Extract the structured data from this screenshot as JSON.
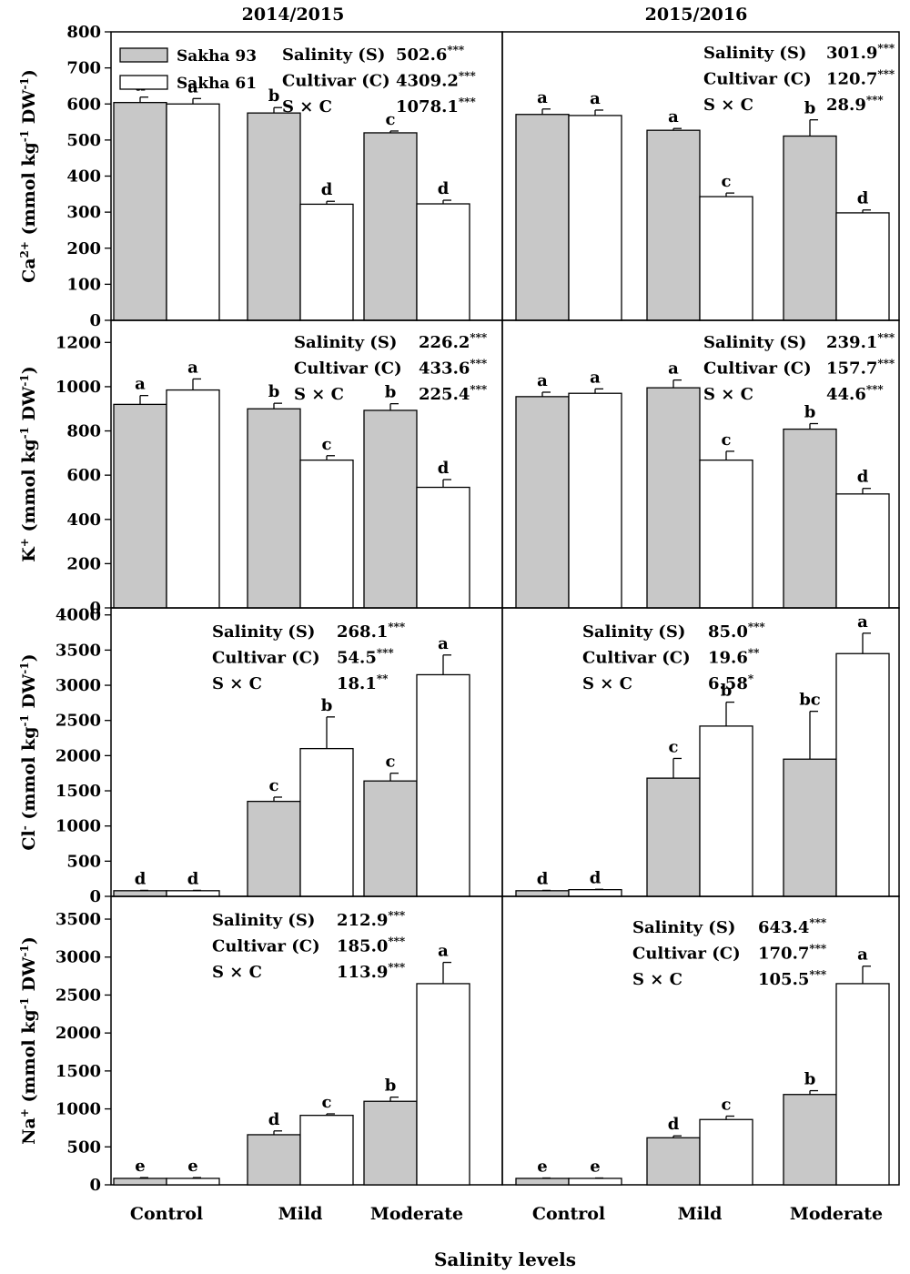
{
  "figure": {
    "columns": [
      "2014/2015",
      "2015/2016"
    ],
    "xlabel": "Salinity levels"
  },
  "legend": {
    "entries": [
      {
        "label": "Sakha 93",
        "fill": "#c8c8c8"
      },
      {
        "label": "Sakha 61",
        "fill": "#ffffff"
      }
    ]
  },
  "rows": [
    {
      "ylabel": {
        "main": "Ca",
        "sup1": "2+",
        "mid": " (mmol kg",
        "sup2": "-1",
        "end": " DW",
        "sup3": "-1",
        "close": ")"
      },
      "ylim": [
        0,
        800
      ],
      "yticks": [
        "0",
        "100",
        "200",
        "300",
        "400",
        "500",
        "600",
        "700",
        "800"
      ]
    },
    {
      "ylabel": {
        "main": "K",
        "sup1": "+",
        "mid": " (mmol kg",
        "sup2": "-1",
        "end": " DW",
        "sup3": "-1",
        "close": ")"
      },
      "ylim": [
        0,
        1300
      ],
      "yticks": [
        "0",
        "200",
        "400",
        "600",
        "800",
        "1000",
        "1200"
      ]
    },
    {
      "ylabel": {
        "main": "Cl",
        "sup1": "-",
        "mid": " (mmol kg",
        "sup2": "-1",
        "end": " DW",
        "sup3": "-1",
        "close": ")"
      },
      "ylim": [
        0,
        4100
      ],
      "yticks": [
        "0",
        "500",
        "1000",
        "1500",
        "2000",
        "2500",
        "3000",
        "3500",
        "4000"
      ]
    },
    {
      "ylabel": {
        "main": "Na",
        "sup1": "+",
        "mid": " (mmol kg",
        "sup2": "-1",
        "end": " DW",
        "sup3": "-1",
        "close": ")"
      },
      "ylim": [
        0,
        3800
      ],
      "yticks": [
        "0",
        "500",
        "1000",
        "1500",
        "2000",
        "2500",
        "3000",
        "3500"
      ]
    }
  ],
  "chart_data": [
    {
      "type": "bar",
      "title": "2014/2015",
      "ylabel": "Ca2+ (mmol kg-1 DW-1)",
      "xlabel": "Salinity levels",
      "ylim": [
        0,
        800
      ],
      "categories": [
        "Control",
        "Mild",
        "Moderate"
      ],
      "series": [
        {
          "name": "Sakha 93",
          "values": [
            604,
            575,
            520
          ],
          "errors": [
            15,
            15,
            5
          ],
          "letters": [
            "a",
            "b",
            "c"
          ]
        },
        {
          "name": "Sakha 61",
          "values": [
            600,
            322,
            323
          ],
          "errors": [
            15,
            8,
            10
          ],
          "letters": [
            "a",
            "d",
            "d"
          ]
        }
      ],
      "anova": [
        {
          "label": "Salinity (S)",
          "value": "502.6",
          "sig": "***"
        },
        {
          "label": "Cultivar (C)",
          "value": "4309.2",
          "sig": "***"
        },
        {
          "label": "S × C",
          "value": "1078.1",
          "sig": "***"
        }
      ]
    },
    {
      "type": "bar",
      "title": "2015/2016",
      "ylabel": "Ca2+ (mmol kg-1 DW-1)",
      "xlabel": "Salinity levels",
      "ylim": [
        0,
        800
      ],
      "categories": [
        "Control",
        "Mild",
        "Moderate"
      ],
      "series": [
        {
          "name": "Sakha 93",
          "values": [
            571,
            527,
            511
          ],
          "errors": [
            15,
            5,
            45
          ],
          "letters": [
            "a",
            "a",
            "b"
          ]
        },
        {
          "name": "Sakha 61",
          "values": [
            568,
            343,
            298
          ],
          "errors": [
            15,
            10,
            8
          ],
          "letters": [
            "a",
            "c",
            "d"
          ]
        }
      ],
      "anova": [
        {
          "label": "Salinity (S)",
          "value": "301.9",
          "sig": "***"
        },
        {
          "label": "Cultivar (C)",
          "value": "120.7",
          "sig": "***"
        },
        {
          "label": "S × C",
          "value": "28.9",
          "sig": "***"
        }
      ]
    },
    {
      "type": "bar",
      "title": "2014/2015",
      "ylabel": "K+ (mmol kg-1 DW-1)",
      "xlabel": "Salinity levels",
      "ylim": [
        0,
        1300
      ],
      "categories": [
        "Control",
        "Mild",
        "Moderate"
      ],
      "series": [
        {
          "name": "Sakha 93",
          "values": [
            920,
            900,
            893
          ],
          "errors": [
            40,
            25,
            30
          ],
          "letters": [
            "a",
            "b",
            "b"
          ]
        },
        {
          "name": "Sakha 61",
          "values": [
            985,
            668,
            545
          ],
          "errors": [
            50,
            20,
            35
          ],
          "letters": [
            "a",
            "c",
            "d"
          ]
        }
      ],
      "anova": [
        {
          "label": "Salinity (S)",
          "value": "226.2",
          "sig": "***"
        },
        {
          "label": "Cultivar (C)",
          "value": "433.6",
          "sig": "***"
        },
        {
          "label": "S × C",
          "value": "225.4",
          "sig": "***"
        }
      ]
    },
    {
      "type": "bar",
      "title": "2015/2016",
      "ylabel": "K+ (mmol kg-1 DW-1)",
      "xlabel": "Salinity levels",
      "ylim": [
        0,
        1300
      ],
      "categories": [
        "Control",
        "Mild",
        "Moderate"
      ],
      "series": [
        {
          "name": "Sakha 93",
          "values": [
            955,
            995,
            808
          ],
          "errors": [
            20,
            35,
            25
          ],
          "letters": [
            "a",
            "a",
            "b"
          ]
        },
        {
          "name": "Sakha 61",
          "values": [
            970,
            668,
            515
          ],
          "errors": [
            20,
            40,
            25
          ],
          "letters": [
            "a",
            "c",
            "d"
          ]
        }
      ],
      "anova": [
        {
          "label": "Salinity (S)",
          "value": "239.1",
          "sig": "***"
        },
        {
          "label": "Cultivar (C)",
          "value": "157.7",
          "sig": "***"
        },
        {
          "label": "S × C",
          "value": "44.6",
          "sig": "***"
        }
      ]
    },
    {
      "type": "bar",
      "title": "2014/2015",
      "ylabel": "Cl- (mmol kg-1 DW-1)",
      "xlabel": "Salinity levels",
      "ylim": [
        0,
        4100
      ],
      "categories": [
        "Control",
        "Mild",
        "Moderate"
      ],
      "series": [
        {
          "name": "Sakha 93",
          "values": [
            80,
            1350,
            1640
          ],
          "errors": [
            5,
            60,
            110
          ],
          "letters": [
            "d",
            "c",
            "c"
          ]
        },
        {
          "name": "Sakha 61",
          "values": [
            80,
            2100,
            3150
          ],
          "errors": [
            5,
            450,
            280
          ],
          "letters": [
            "d",
            "b",
            "a"
          ]
        }
      ],
      "anova": [
        {
          "label": "Salinity (S)",
          "value": "268.1",
          "sig": "***"
        },
        {
          "label": "Cultivar (C)",
          "value": "54.5",
          "sig": "***"
        },
        {
          "label": "S × C",
          "value": "18.1",
          "sig": "**"
        }
      ]
    },
    {
      "type": "bar",
      "title": "2015/2016",
      "ylabel": "Cl- (mmol kg-1 DW-1)",
      "xlabel": "Salinity levels",
      "ylim": [
        0,
        4100
      ],
      "categories": [
        "Control",
        "Mild",
        "Moderate"
      ],
      "series": [
        {
          "name": "Sakha 93",
          "values": [
            80,
            1680,
            1950
          ],
          "errors": [
            5,
            280,
            680
          ],
          "letters": [
            "d",
            "c",
            "bc"
          ]
        },
        {
          "name": "Sakha 61",
          "values": [
            95,
            2420,
            3450
          ],
          "errors": [
            5,
            340,
            290
          ],
          "letters": [
            "d",
            "b",
            "a"
          ]
        }
      ],
      "anova": [
        {
          "label": "Salinity (S)",
          "value": "85.0",
          "sig": "***"
        },
        {
          "label": "Cultivar (C)",
          "value": "19.6",
          "sig": "**"
        },
        {
          "label": "S × C",
          "value": "6.58",
          "sig": "*"
        }
      ]
    },
    {
      "type": "bar",
      "title": "2014/2015",
      "ylabel": "Na+ (mmol kg-1 DW-1)",
      "xlabel": "Salinity levels",
      "ylim": [
        0,
        3800
      ],
      "categories": [
        "Control",
        "Mild",
        "Moderate"
      ],
      "series": [
        {
          "name": "Sakha 93",
          "values": [
            85,
            660,
            1100
          ],
          "errors": [
            10,
            50,
            55
          ],
          "letters": [
            "e",
            "d",
            "b"
          ]
        },
        {
          "name": "Sakha 61",
          "values": [
            85,
            915,
            2650
          ],
          "errors": [
            10,
            20,
            280
          ],
          "letters": [
            "e",
            "c",
            "a"
          ]
        }
      ],
      "anova": [
        {
          "label": "Salinity (S)",
          "value": "212.9",
          "sig": "***"
        },
        {
          "label": "Cultivar (C)",
          "value": "185.0",
          "sig": "***"
        },
        {
          "label": "S × C",
          "value": "113.9",
          "sig": "***"
        }
      ]
    },
    {
      "type": "bar",
      "title": "2015/2016",
      "ylabel": "Na+ (mmol kg-1 DW-1)",
      "xlabel": "Salinity levels",
      "ylim": [
        0,
        3800
      ],
      "categories": [
        "Control",
        "Mild",
        "Moderate"
      ],
      "series": [
        {
          "name": "Sakha 93",
          "values": [
            85,
            620,
            1190
          ],
          "errors": [
            5,
            25,
            50
          ],
          "letters": [
            "e",
            "d",
            "b"
          ]
        },
        {
          "name": "Sakha 61",
          "values": [
            85,
            860,
            2650
          ],
          "errors": [
            5,
            45,
            230
          ],
          "letters": [
            "e",
            "c",
            "a"
          ]
        }
      ],
      "anova": [
        {
          "label": "Salinity (S)",
          "value": "643.4",
          "sig": "***"
        },
        {
          "label": "Cultivar (C)",
          "value": "170.7",
          "sig": "***"
        },
        {
          "label": "S × C",
          "value": "105.5",
          "sig": "***"
        }
      ]
    }
  ]
}
